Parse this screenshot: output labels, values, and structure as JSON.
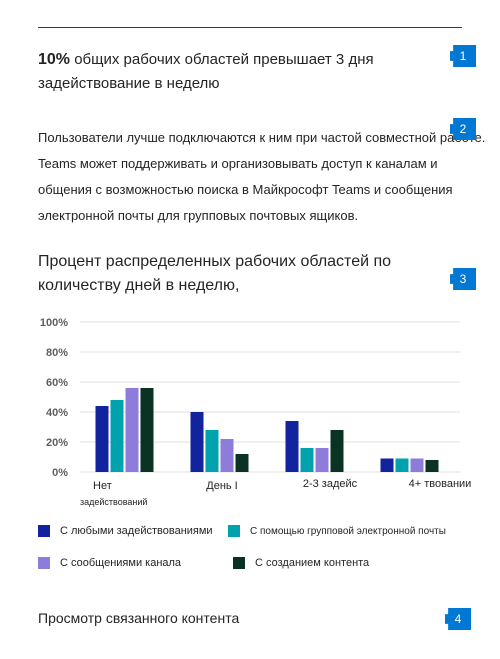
{
  "stat": {
    "value": "10%",
    "text": "общих рабочих областей превышает 3 дня задействование в неделю"
  },
  "description": "Пользователи лучше подключаются к ним при частой совместной работе. Teams может поддерживать и организовывать доступ к каналам и общения с возможностью поиска в Майкрософт Teams и сообщения электронной почты для групповых почтовых ящиков.",
  "chart_title": "Процент распределенных рабочих областей по количеству дней в неделю,",
  "related": "Просмотр связанного контента",
  "callouts": [
    "1",
    "2",
    "3",
    "4"
  ],
  "chart_data": {
    "type": "bar",
    "categories": [
      "Нет задействований",
      "День I",
      "2-3 задейс",
      "4+ твовании"
    ],
    "series": [
      {
        "name": "С любыми задействованиями",
        "color": "#12239e",
        "values": [
          44,
          40,
          34,
          9
        ]
      },
      {
        "name": "С помощью групповой электронной почты",
        "color": "#00a2ad",
        "values": [
          48,
          28,
          16,
          9
        ]
      },
      {
        "name": "С сообщениями канала",
        "color": "#8e7cdb",
        "values": [
          56,
          22,
          16,
          9
        ]
      },
      {
        "name": "С созданием контента",
        "color": "#0b3324",
        "values": [
          56,
          12,
          28,
          8
        ]
      }
    ],
    "y_ticks": [
      "0%",
      "20%",
      "40%",
      "60%",
      "80%",
      "100%"
    ],
    "ylim": [
      0,
      100
    ],
    "grid": true,
    "legend": "bottom"
  }
}
